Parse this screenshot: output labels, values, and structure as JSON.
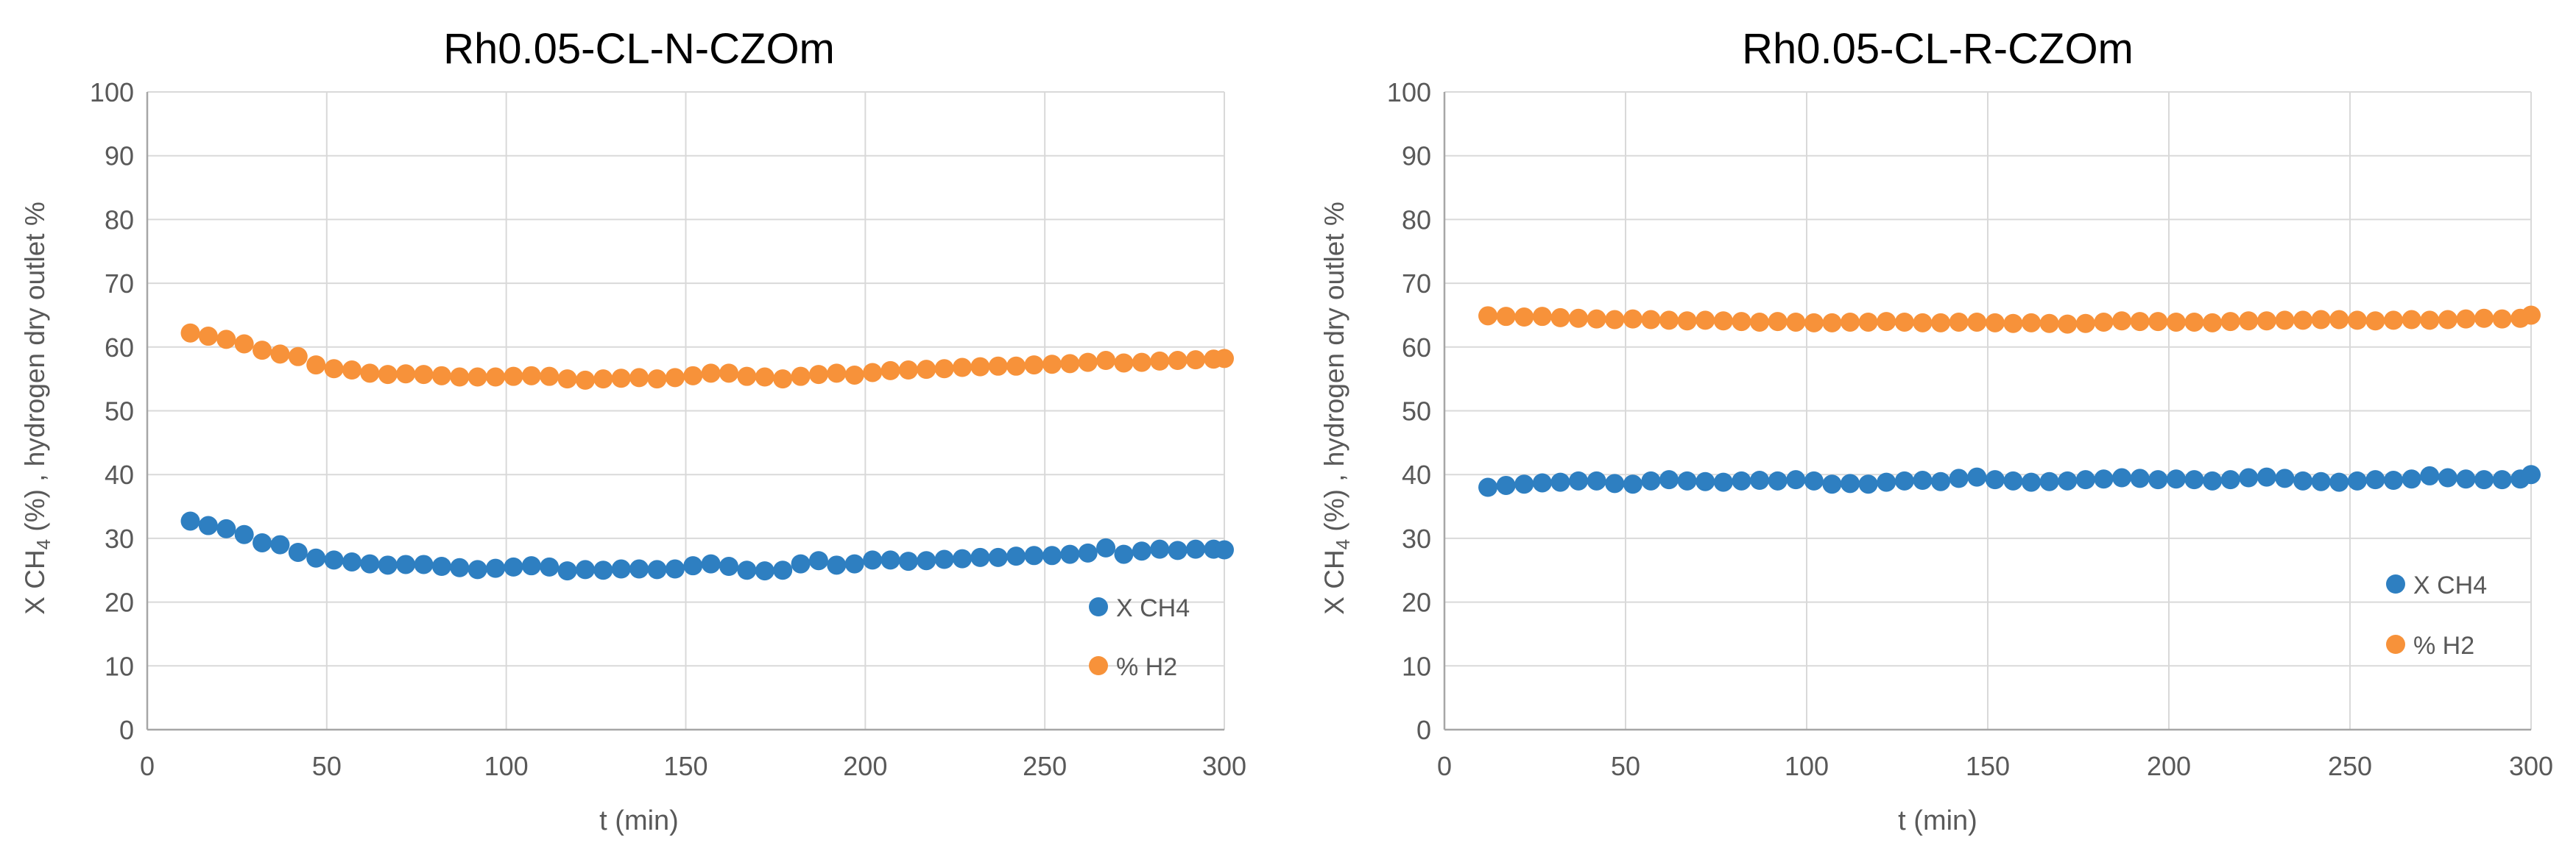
{
  "colors": {
    "xch4": "#2E7FC1",
    "h2": "#F7923A",
    "grid": "#D9D9D9",
    "axis": "#A6A6A6",
    "text": "#595959",
    "title": "#000000"
  },
  "chart_data": [
    {
      "type": "scatter",
      "title": "Rh0.05-CL-N-CZOm",
      "xlabel": "t (min)",
      "ylabel": "X CH4 (%) , hydrogen dry outlet %",
      "ylabel_parts": {
        "pre": "X CH",
        "sub": "4",
        "post": " (%) , hydrogen dry outlet %"
      },
      "xlim": [
        0,
        300
      ],
      "ylim": [
        0,
        100
      ],
      "xticks": [
        0,
        50,
        100,
        150,
        200,
        250,
        300
      ],
      "yticks": [
        0,
        10,
        20,
        30,
        40,
        50,
        60,
        70,
        80,
        90,
        100
      ],
      "grid": true,
      "legend_position": "right",
      "x": [
        12,
        17,
        22,
        27,
        32,
        37,
        42,
        47,
        52,
        57,
        62,
        67,
        72,
        77,
        82,
        87,
        92,
        97,
        102,
        107,
        112,
        117,
        122,
        127,
        132,
        137,
        142,
        147,
        152,
        157,
        162,
        167,
        172,
        177,
        182,
        187,
        192,
        197,
        202,
        207,
        212,
        217,
        222,
        227,
        232,
        237,
        242,
        247,
        252,
        257,
        262,
        267,
        272,
        277,
        282,
        287,
        292,
        297,
        300
      ],
      "series": [
        {
          "name": "X CH4",
          "color": "#2E7FC1",
          "values": [
            32.7,
            32.0,
            31.5,
            30.6,
            29.3,
            29.0,
            27.8,
            26.9,
            26.6,
            26.3,
            26.0,
            25.8,
            25.9,
            25.9,
            25.6,
            25.4,
            25.1,
            25.3,
            25.5,
            25.7,
            25.5,
            24.9,
            25.1,
            25.0,
            25.2,
            25.2,
            25.1,
            25.2,
            25.7,
            26.0,
            25.6,
            25.0,
            24.9,
            25.0,
            26.0,
            26.5,
            25.8,
            26.0,
            26.6,
            26.6,
            26.4,
            26.5,
            26.7,
            26.8,
            27.0,
            27.0,
            27.2,
            27.3,
            27.3,
            27.5,
            27.7,
            28.5,
            27.5,
            28.0,
            28.3,
            28.1,
            28.3,
            28.3,
            28.2
          ]
        },
        {
          "name": "% H2",
          "color": "#F7923A",
          "values": [
            62.2,
            61.7,
            61.2,
            60.5,
            59.5,
            58.9,
            58.5,
            57.2,
            56.6,
            56.4,
            55.9,
            55.7,
            55.8,
            55.7,
            55.5,
            55.3,
            55.3,
            55.3,
            55.4,
            55.5,
            55.4,
            55.0,
            54.8,
            55.0,
            55.1,
            55.2,
            55.0,
            55.2,
            55.5,
            55.9,
            55.9,
            55.4,
            55.3,
            55.0,
            55.4,
            55.7,
            55.9,
            55.6,
            56.0,
            56.3,
            56.4,
            56.5,
            56.6,
            56.8,
            56.9,
            57.0,
            57.0,
            57.2,
            57.3,
            57.4,
            57.6,
            57.9,
            57.5,
            57.6,
            57.8,
            57.9,
            58.0,
            58.1,
            58.2
          ]
        }
      ]
    },
    {
      "type": "scatter",
      "title": "Rh0.05-CL-R-CZOm",
      "xlabel": "t (min)",
      "ylabel": "X CH4 (%) , hydrogen dry outlet %",
      "ylabel_parts": {
        "pre": "X CH",
        "sub": "4",
        "post": " (%) , hydrogen dry outlet %"
      },
      "xlim": [
        0,
        300
      ],
      "ylim": [
        0,
        100
      ],
      "xticks": [
        0,
        50,
        100,
        150,
        200,
        250,
        300
      ],
      "yticks": [
        0,
        10,
        20,
        30,
        40,
        50,
        60,
        70,
        80,
        90,
        100
      ],
      "grid": true,
      "legend_position": "right",
      "x": [
        12,
        17,
        22,
        27,
        32,
        37,
        42,
        47,
        52,
        57,
        62,
        67,
        72,
        77,
        82,
        87,
        92,
        97,
        102,
        107,
        112,
        117,
        122,
        127,
        132,
        137,
        142,
        147,
        152,
        157,
        162,
        167,
        172,
        177,
        182,
        187,
        192,
        197,
        202,
        207,
        212,
        217,
        222,
        227,
        232,
        237,
        242,
        247,
        252,
        257,
        262,
        267,
        272,
        277,
        282,
        287,
        292,
        297,
        300
      ],
      "series": [
        {
          "name": "X CH4",
          "color": "#2E7FC1",
          "values": [
            38.0,
            38.3,
            38.5,
            38.7,
            38.8,
            39.0,
            39.0,
            38.6,
            38.5,
            39.0,
            39.2,
            39.0,
            38.9,
            38.8,
            39.0,
            39.1,
            39.0,
            39.2,
            39.0,
            38.5,
            38.6,
            38.5,
            38.8,
            39.0,
            39.1,
            38.9,
            39.4,
            39.6,
            39.2,
            39.0,
            38.8,
            38.9,
            39.0,
            39.2,
            39.3,
            39.5,
            39.4,
            39.2,
            39.3,
            39.2,
            39.0,
            39.2,
            39.5,
            39.6,
            39.4,
            39.0,
            38.9,
            38.8,
            39.0,
            39.2,
            39.1,
            39.3,
            39.8,
            39.5,
            39.3,
            39.2,
            39.2,
            39.3,
            40.0
          ]
        },
        {
          "name": "% H2",
          "color": "#F7923A",
          "values": [
            64.9,
            64.8,
            64.7,
            64.8,
            64.6,
            64.5,
            64.4,
            64.3,
            64.4,
            64.3,
            64.2,
            64.1,
            64.2,
            64.1,
            64.0,
            63.9,
            64.0,
            63.9,
            63.8,
            63.8,
            63.9,
            63.9,
            64.0,
            63.9,
            63.8,
            63.8,
            63.9,
            63.9,
            63.8,
            63.7,
            63.8,
            63.7,
            63.6,
            63.7,
            63.9,
            64.1,
            64.0,
            64.0,
            63.9,
            63.9,
            63.8,
            64.0,
            64.1,
            64.1,
            64.2,
            64.2,
            64.3,
            64.3,
            64.2,
            64.1,
            64.2,
            64.3,
            64.2,
            64.3,
            64.4,
            64.5,
            64.4,
            64.5,
            65.0
          ]
        }
      ]
    }
  ]
}
